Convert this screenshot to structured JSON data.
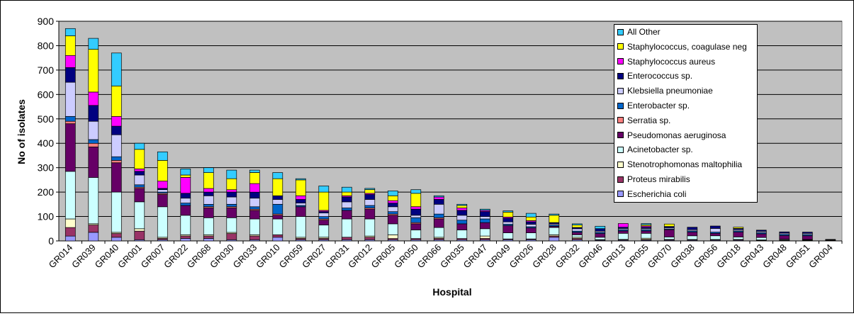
{
  "chart_data": {
    "type": "bar",
    "stacked": true,
    "title": "",
    "xlabel": "Hospital",
    "ylabel": "No of isolates",
    "ylim": [
      0,
      900
    ],
    "yticks": [
      0,
      100,
      200,
      300,
      400,
      500,
      600,
      700,
      800,
      900
    ],
    "grid": true,
    "legend_position": "top-right",
    "plot_background": "#c0c0c0",
    "categories": [
      "GR014",
      "GR039",
      "GR040",
      "GR001",
      "GR007",
      "GR022",
      "GR068",
      "GR030",
      "GR033",
      "GR010",
      "GR059",
      "GR027",
      "GR031",
      "GR012",
      "GR005",
      "GR050",
      "GR066",
      "GR035",
      "GR047",
      "GR049",
      "GR026",
      "GR028",
      "GR032",
      "GR046",
      "GR013",
      "GR055",
      "GR070",
      "GR038",
      "GR056",
      "GR018",
      "GR043",
      "GR048",
      "GR051",
      "GR004"
    ],
    "series": [
      {
        "name": "Escherichia coli",
        "color": "#9999ff",
        "values": [
          20,
          35,
          15,
          5,
          5,
          10,
          10,
          5,
          5,
          15,
          5,
          5,
          5,
          5,
          5,
          5,
          5,
          5,
          5,
          5,
          5,
          15,
          5,
          3,
          3,
          3,
          3,
          3,
          3,
          3,
          2,
          2,
          2,
          1
        ]
      },
      {
        "name": "Proteus mirabilis",
        "color": "#993366",
        "values": [
          35,
          30,
          15,
          35,
          5,
          10,
          10,
          25,
          15,
          10,
          5,
          5,
          10,
          10,
          5,
          5,
          5,
          5,
          5,
          3,
          3,
          5,
          5,
          2,
          3,
          3,
          3,
          3,
          3,
          3,
          2,
          2,
          2,
          1
        ]
      },
      {
        "name": "Stenotrophomonas maltophilia",
        "color": "#ffffcc",
        "values": [
          35,
          5,
          5,
          10,
          5,
          5,
          5,
          5,
          5,
          0,
          5,
          5,
          0,
          5,
          15,
          0,
          5,
          0,
          10,
          0,
          0,
          5,
          5,
          0,
          0,
          5,
          0,
          0,
          0,
          0,
          0,
          0,
          0,
          0
        ]
      },
      {
        "name": "Acinetobacter sp.",
        "color": "#ccffff",
        "values": [
          195,
          190,
          165,
          110,
          125,
          80,
          70,
          60,
          65,
          65,
          85,
          50,
          75,
          70,
          45,
          35,
          40,
          35,
          30,
          25,
          25,
          30,
          10,
          10,
          25,
          20,
          10,
          15,
          15,
          10,
          10,
          3,
          2,
          0
        ]
      },
      {
        "name": "Pseudomonas aeruginosa",
        "color": "#660066",
        "values": [
          195,
          125,
          120,
          55,
          50,
          40,
          40,
          40,
          35,
          15,
          40,
          20,
          35,
          40,
          35,
          25,
          35,
          25,
          25,
          30,
          20,
          5,
          10,
          15,
          10,
          10,
          30,
          15,
          10,
          20,
          15,
          15,
          15,
          2
        ]
      },
      {
        "name": "Serratia sp.",
        "color": "#ff8080",
        "values": [
          10,
          15,
          10,
          5,
          5,
          0,
          5,
          5,
          5,
          5,
          0,
          5,
          0,
          5,
          5,
          5,
          5,
          0,
          0,
          0,
          0,
          0,
          0,
          0,
          0,
          0,
          0,
          0,
          0,
          0,
          0,
          0,
          0,
          0
        ]
      },
      {
        "name": "Enterobacter sp.",
        "color": "#0066cc",
        "values": [
          20,
          15,
          15,
          10,
          5,
          10,
          10,
          10,
          10,
          40,
          5,
          10,
          10,
          10,
          10,
          20,
          15,
          15,
          15,
          5,
          5,
          5,
          5,
          5,
          5,
          5,
          3,
          5,
          5,
          5,
          5,
          5,
          5,
          0
        ]
      },
      {
        "name": "Klebsiella pneumoniae",
        "color": "#ccccff",
        "values": [
          140,
          75,
          90,
          40,
          10,
          20,
          35,
          30,
          35,
          20,
          10,
          15,
          25,
          25,
          20,
          10,
          40,
          20,
          10,
          10,
          10,
          5,
          10,
          5,
          5,
          5,
          5,
          5,
          15,
          5,
          5,
          5,
          5,
          0
        ]
      },
      {
        "name": "Enterococcus sp.",
        "color": "#000080",
        "values": [
          60,
          65,
          35,
          15,
          5,
          20,
          15,
          20,
          25,
          15,
          15,
          5,
          20,
          20,
          15,
          25,
          20,
          20,
          20,
          15,
          10,
          5,
          5,
          10,
          5,
          5,
          5,
          10,
          10,
          5,
          5,
          5,
          5,
          2
        ]
      },
      {
        "name": "Staphylococcus aureus",
        "color": "#ff00ff",
        "values": [
          50,
          55,
          40,
          10,
          30,
          65,
          15,
          10,
          35,
          0,
          15,
          5,
          5,
          5,
          10,
          10,
          10,
          10,
          5,
          5,
          5,
          0,
          0,
          0,
          15,
          5,
          0,
          0,
          0,
          0,
          0,
          0,
          0,
          0
        ]
      },
      {
        "name": "Staphylococcus, coagulase neg",
        "color": "#ffff00",
        "values": [
          80,
          175,
          125,
          80,
          85,
          10,
          65,
          45,
          45,
          70,
          65,
          75,
          15,
          15,
          20,
          55,
          0,
          10,
          0,
          20,
          15,
          30,
          10,
          0,
          0,
          5,
          10,
          0,
          0,
          5,
          0,
          0,
          0,
          0
        ]
      },
      {
        "name": "All Other",
        "color": "#33ccff",
        "values": [
          30,
          45,
          135,
          25,
          35,
          25,
          20,
          35,
          10,
          25,
          5,
          25,
          20,
          5,
          20,
          15,
          5,
          5,
          5,
          5,
          15,
          5,
          5,
          10,
          0,
          5,
          0,
          0,
          0,
          0,
          0,
          0,
          0,
          0
        ]
      }
    ],
    "legend_order": [
      "All Other",
      "Staphylococcus, coagulase neg",
      "Staphylococcus aureus",
      "Enterococcus sp.",
      "Klebsiella pneumoniae",
      "Enterobacter sp.",
      "Serratia sp.",
      "Pseudomonas aeruginosa",
      "Acinetobacter sp.",
      "Stenotrophomonas maltophilia",
      "Proteus mirabilis",
      "Escherichia coli"
    ]
  }
}
